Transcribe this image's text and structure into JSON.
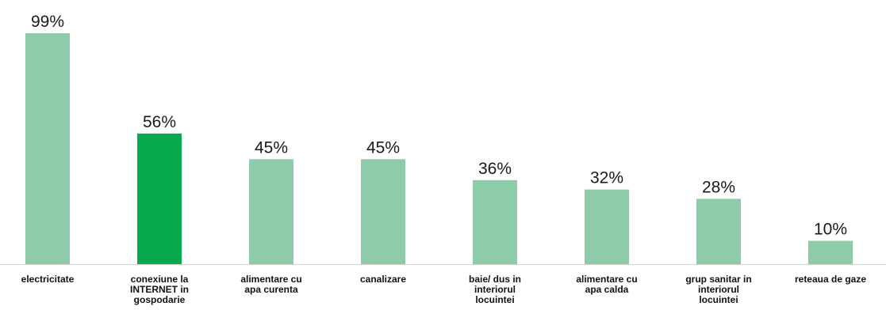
{
  "chart_data": {
    "type": "bar",
    "categories": [
      "electricitate",
      "conexiune la INTERNET in gospodarie",
      "alimentare cu apa curenta",
      "canalizare",
      "baie/ dus in interiorul locuintei",
      "alimentare cu apa calda",
      "grup sanitar in interiorul locuintei",
      "reteaua de gaze"
    ],
    "category_lines": [
      [
        "electricitate"
      ],
      [
        "conexiune la",
        "INTERNET in",
        "gospodarie"
      ],
      [
        "alimentare cu",
        "apa curenta"
      ],
      [
        "canalizare"
      ],
      [
        "baie/ dus in",
        "interiorul",
        "locuintei"
      ],
      [
        "alimentare cu",
        "apa calda"
      ],
      [
        "grup sanitar in",
        "interiorul",
        "locuintei"
      ],
      [
        "reteaua de gaze"
      ]
    ],
    "values": [
      99,
      56,
      45,
      45,
      36,
      32,
      28,
      10
    ],
    "data_labels": [
      "99%",
      "56%",
      "45%",
      "45%",
      "36%",
      "32%",
      "28%",
      "10%"
    ],
    "unit": "%",
    "ylim": [
      0,
      100
    ],
    "highlight_index": 1,
    "colors": {
      "bar": "#8ecba8",
      "highlight": "#08a94c",
      "baseline": "#cfcfcf"
    }
  }
}
